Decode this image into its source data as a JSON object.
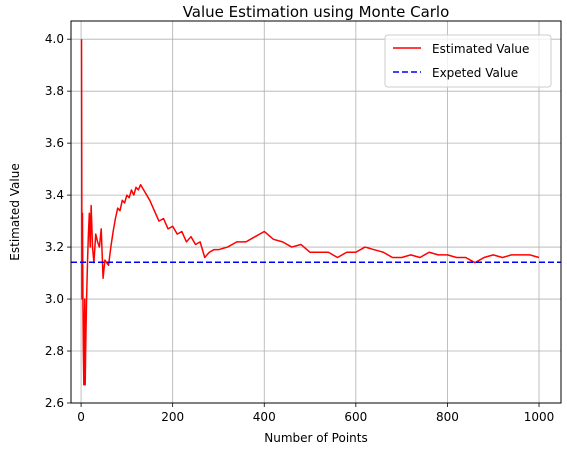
{
  "chart_data": {
    "type": "line",
    "title": "Value Estimation using Monte Carlo",
    "xlabel": "Number of Points",
    "ylabel": "Estimated Value",
    "xlim": [
      -22,
      1048
    ],
    "ylim": [
      2.6,
      4.07
    ],
    "xticks": [
      0,
      200,
      400,
      600,
      800,
      1000
    ],
    "yticks": [
      2.6,
      2.8,
      3.0,
      3.2,
      3.4,
      3.6,
      3.8,
      4.0
    ],
    "xtick_labels": [
      "0",
      "200",
      "400",
      "600",
      "800",
      "1000"
    ],
    "ytick_labels": [
      "2.6",
      "2.8",
      "3.0",
      "3.2",
      "3.4",
      "3.6",
      "3.8",
      "4.0"
    ],
    "grid": true,
    "legend_position": "top-right",
    "series": [
      {
        "name": "Estimated Value",
        "color": "#ff0000",
        "style": "solid",
        "x": [
          1,
          2,
          3,
          4,
          5,
          6,
          7,
          8,
          9,
          10,
          12,
          14,
          16,
          18,
          20,
          22,
          25,
          28,
          32,
          36,
          40,
          44,
          48,
          52,
          56,
          60,
          65,
          70,
          75,
          80,
          85,
          90,
          95,
          100,
          105,
          110,
          115,
          120,
          125,
          130,
          140,
          150,
          160,
          170,
          180,
          190,
          200,
          210,
          220,
          230,
          240,
          250,
          260,
          270,
          280,
          290,
          300,
          320,
          340,
          360,
          380,
          400,
          420,
          440,
          460,
          480,
          500,
          520,
          540,
          560,
          580,
          600,
          620,
          640,
          660,
          680,
          700,
          720,
          740,
          760,
          780,
          800,
          820,
          840,
          860,
          880,
          900,
          920,
          940,
          960,
          980,
          1000
        ],
        "y": [
          4.0,
          3.0,
          3.33,
          3.0,
          2.8,
          2.67,
          2.86,
          3.0,
          2.67,
          2.8,
          3.0,
          3.14,
          3.25,
          3.33,
          3.2,
          3.36,
          3.2,
          3.14,
          3.25,
          3.22,
          3.2,
          3.27,
          3.08,
          3.15,
          3.14,
          3.13,
          3.2,
          3.26,
          3.31,
          3.35,
          3.34,
          3.38,
          3.37,
          3.4,
          3.39,
          3.42,
          3.4,
          3.43,
          3.42,
          3.44,
          3.41,
          3.38,
          3.34,
          3.3,
          3.31,
          3.27,
          3.28,
          3.25,
          3.26,
          3.22,
          3.24,
          3.21,
          3.22,
          3.16,
          3.18,
          3.19,
          3.19,
          3.2,
          3.22,
          3.22,
          3.24,
          3.26,
          3.23,
          3.22,
          3.2,
          3.21,
          3.18,
          3.18,
          3.18,
          3.16,
          3.18,
          3.18,
          3.2,
          3.19,
          3.18,
          3.16,
          3.16,
          3.17,
          3.16,
          3.18,
          3.17,
          3.17,
          3.16,
          3.16,
          3.14,
          3.16,
          3.17,
          3.16,
          3.17,
          3.17,
          3.17,
          3.16
        ]
      },
      {
        "name": "Expeted Value",
        "color": "#0000ff",
        "style": "dashed",
        "y_constant": 3.14159
      }
    ]
  }
}
